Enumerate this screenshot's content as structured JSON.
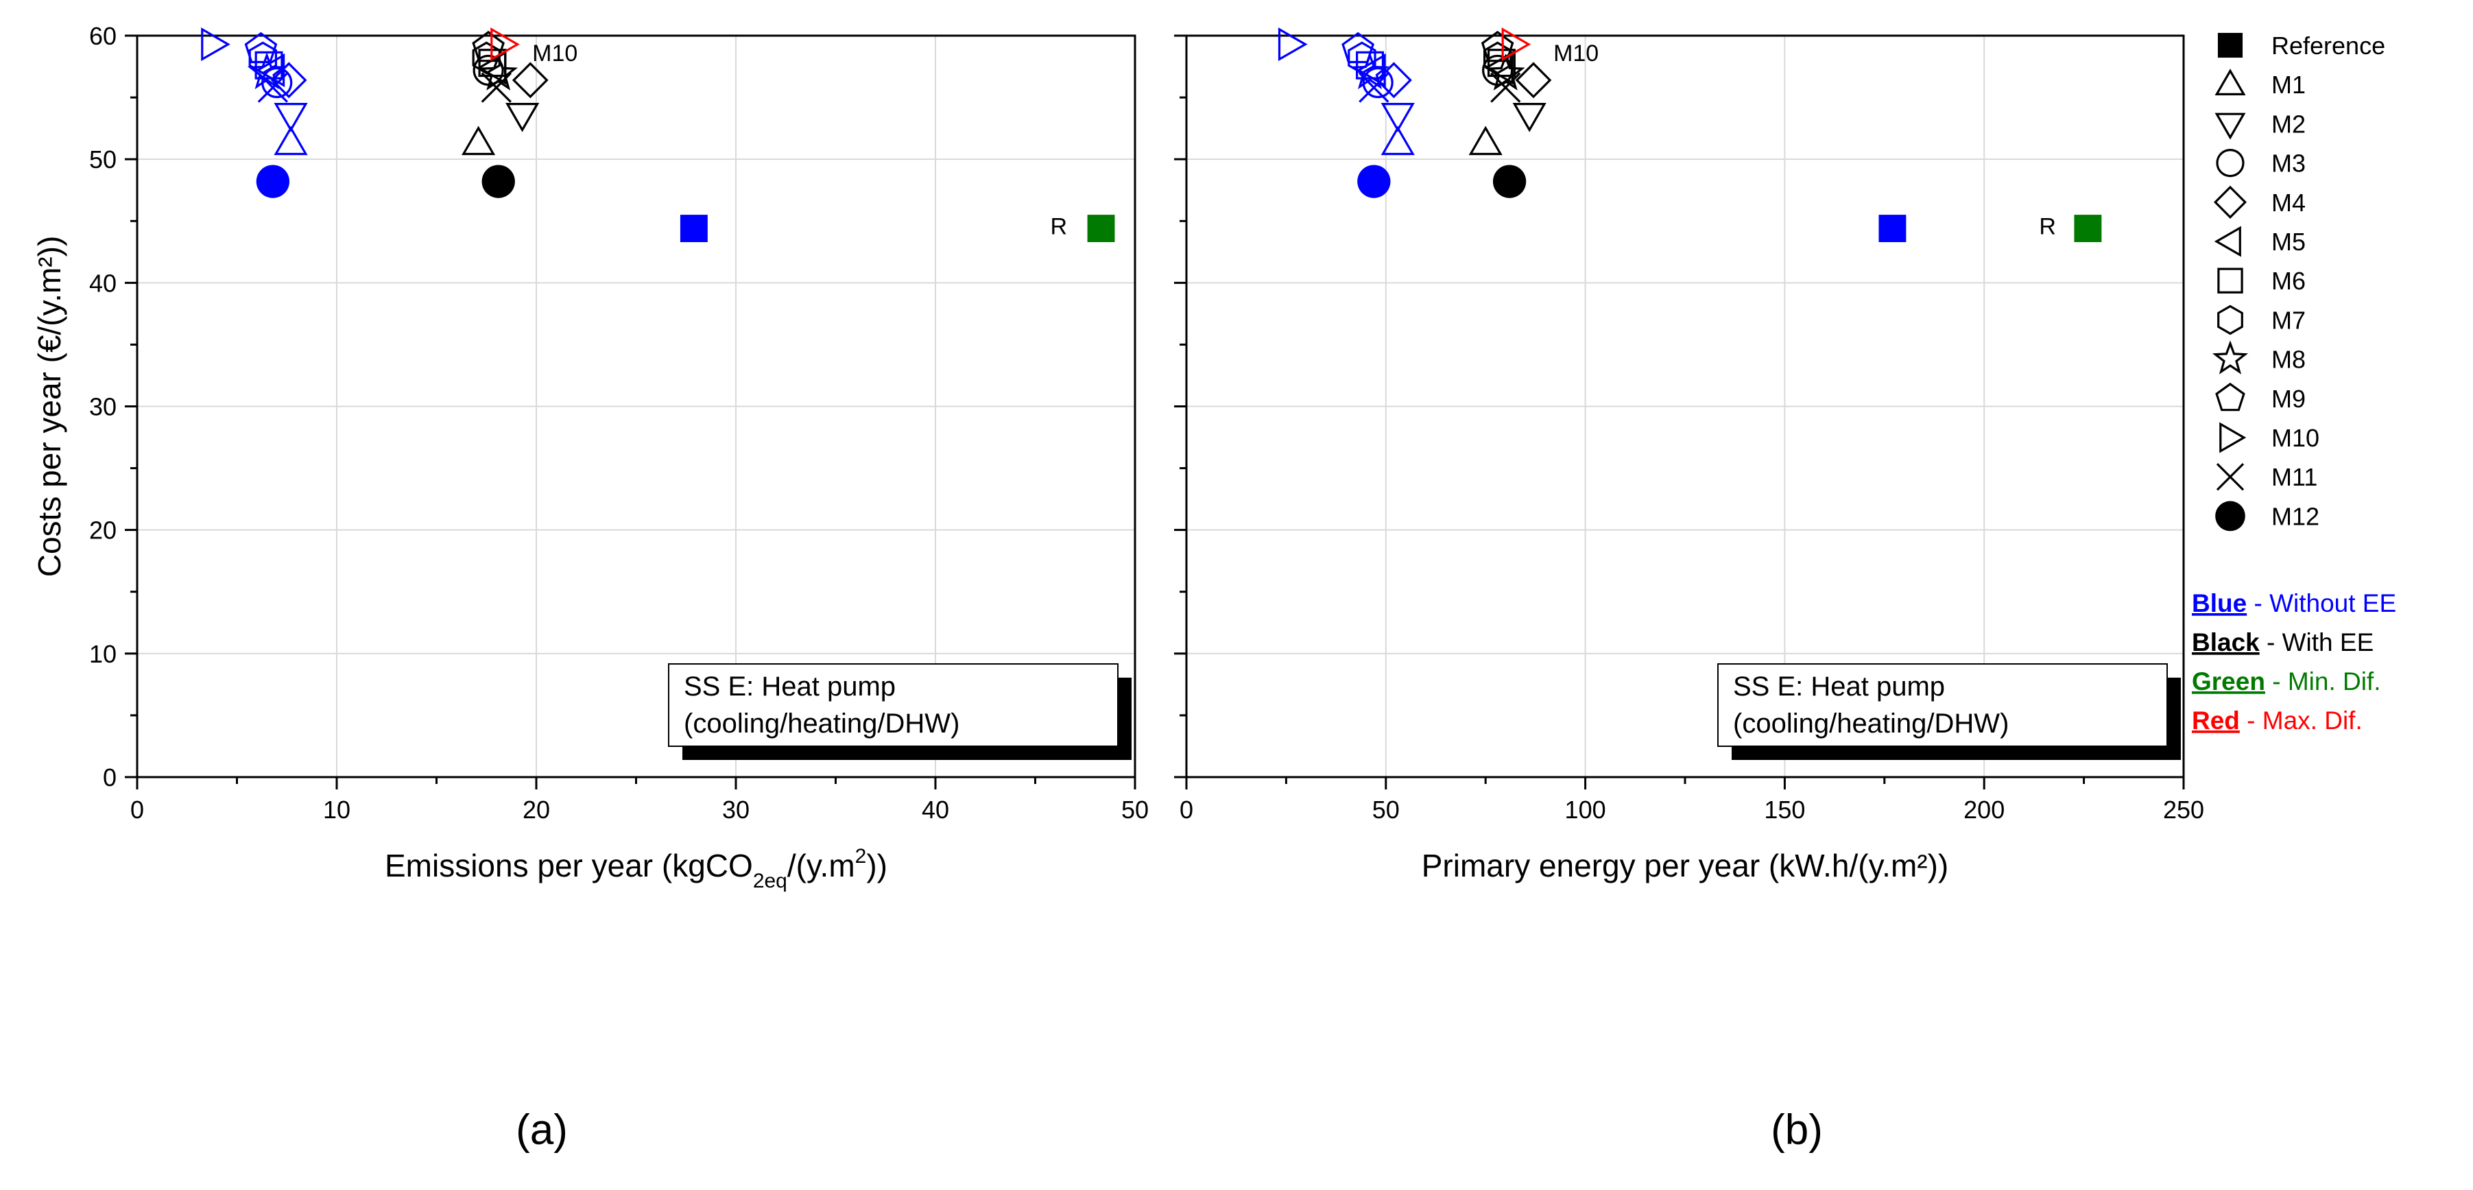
{
  "colors": {
    "blue": "#0000ff",
    "black": "#000000",
    "green": "#007a00",
    "red": "#ff0000",
    "grid": "#d9d9d9"
  },
  "legend": {
    "items": [
      {
        "marker": "filled-square",
        "label": "Reference"
      },
      {
        "marker": "triangle-up",
        "label": "M1"
      },
      {
        "marker": "triangle-down",
        "label": "M2"
      },
      {
        "marker": "circle",
        "label": "M3"
      },
      {
        "marker": "diamond",
        "label": "M4"
      },
      {
        "marker": "triangle-left",
        "label": "M5"
      },
      {
        "marker": "square",
        "label": "M6"
      },
      {
        "marker": "hexagon",
        "label": "M7"
      },
      {
        "marker": "star",
        "label": "M8"
      },
      {
        "marker": "pentagon",
        "label": "M9"
      },
      {
        "marker": "triangle-right",
        "label": "M10"
      },
      {
        "marker": "cross",
        "label": "M11"
      },
      {
        "marker": "filled-circle",
        "label": "M12"
      }
    ],
    "color_key": [
      {
        "word": "Blue",
        "text": " - Without EE",
        "color": "#0000ff"
      },
      {
        "word": "Black",
        "text": " - With EE",
        "color": "#000000"
      },
      {
        "word": "Green",
        "text": " - Min. Dif.",
        "color": "#007a00"
      },
      {
        "word": "Red",
        "text": " - Max. Dif.",
        "color": "#ff0000"
      }
    ]
  },
  "chart_data": [
    {
      "type": "scatter",
      "panel_label": "(a)",
      "ylabel": "Costs per year (€/(y.m²))",
      "xlabel_parts": [
        "Emissions per year (kgCO",
        "2eq",
        "/(y.m",
        "2",
        "))"
      ],
      "xlim": [
        0,
        50
      ],
      "ylim": [
        0,
        60
      ],
      "xticks": [
        0,
        10,
        20,
        30,
        40,
        50
      ],
      "yticks": [
        0,
        10,
        20,
        30,
        40,
        50,
        60
      ],
      "grid": true,
      "annotation_box": {
        "line1": "SS E: Heat pump",
        "line2": "(cooling/heating/DHW)"
      },
      "point_labels": [
        {
          "text": "M10",
          "x": 19.8,
          "y": 58.6
        },
        {
          "text": "R",
          "x": 46.6,
          "y": 44.6
        }
      ],
      "series": [
        {
          "name": "Without EE",
          "color": "blue",
          "points": [
            {
              "m": "filled-square",
              "x": 27.9,
              "y": 44.4
            },
            {
              "m": "triangle-up",
              "x": 7.7,
              "y": 51.3
            },
            {
              "m": "triangle-down",
              "x": 7.7,
              "y": 53.6
            },
            {
              "m": "circle",
              "x": 7.0,
              "y": 56.2
            },
            {
              "m": "diamond",
              "x": 7.6,
              "y": 56.4
            },
            {
              "m": "triangle-left",
              "x": 6.8,
              "y": 57.2
            },
            {
              "m": "square",
              "x": 6.6,
              "y": 57.6
            },
            {
              "m": "hexagon",
              "x": 6.3,
              "y": 58.2
            },
            {
              "m": "star",
              "x": 6.5,
              "y": 57.0
            },
            {
              "m": "pentagon",
              "x": 6.2,
              "y": 58.9
            },
            {
              "m": "triangle-right",
              "x": 3.8,
              "y": 59.3
            },
            {
              "m": "cross",
              "x": 6.8,
              "y": 55.8
            },
            {
              "m": "filled-circle",
              "x": 6.8,
              "y": 48.2
            }
          ]
        },
        {
          "name": "With EE",
          "color": "black",
          "points": [
            {
              "m": "triangle-up",
              "x": 17.1,
              "y": 51.3
            },
            {
              "m": "triangle-down",
              "x": 19.3,
              "y": 53.6
            },
            {
              "m": "circle",
              "x": 17.6,
              "y": 57.2
            },
            {
              "m": "diamond",
              "x": 19.7,
              "y": 56.4
            },
            {
              "m": "triangle-left",
              "x": 17.9,
              "y": 57.4
            },
            {
              "m": "square",
              "x": 17.8,
              "y": 57.8
            },
            {
              "m": "hexagon",
              "x": 17.5,
              "y": 58.2
            },
            {
              "m": "star",
              "x": 18.1,
              "y": 56.9
            },
            {
              "m": "pentagon",
              "x": 17.6,
              "y": 59.0
            },
            {
              "m": "cross",
              "x": 18.0,
              "y": 55.8
            },
            {
              "m": "filled-circle",
              "x": 18.1,
              "y": 48.2
            }
          ]
        },
        {
          "name": "Min. Dif.",
          "color": "green",
          "points": [
            {
              "m": "filled-square",
              "x": 48.3,
              "y": 44.4
            }
          ]
        },
        {
          "name": "Max. Dif.",
          "color": "red",
          "points": [
            {
              "m": "triangle-right",
              "x": 18.3,
              "y": 59.3
            }
          ]
        }
      ]
    },
    {
      "type": "scatter",
      "panel_label": "(b)",
      "xlabel": "Primary energy per year (kW.h/(y.m²))",
      "xlim": [
        0,
        250
      ],
      "ylim": [
        0,
        60
      ],
      "xticks": [
        0,
        50,
        100,
        150,
        200,
        250
      ],
      "yticks": [
        0,
        10,
        20,
        30,
        40,
        50,
        60
      ],
      "grid": true,
      "annotation_box": {
        "line1": "SS E: Heat pump",
        "line2": "(cooling/heating/DHW)"
      },
      "point_labels": [
        {
          "text": "M10",
          "x": 92,
          "y": 58.6
        },
        {
          "text": "R",
          "x": 218,
          "y": 44.6
        }
      ],
      "series": [
        {
          "name": "Without EE",
          "color": "blue",
          "points": [
            {
              "m": "filled-square",
              "x": 177,
              "y": 44.4
            },
            {
              "m": "triangle-up",
              "x": 53,
              "y": 51.3
            },
            {
              "m": "triangle-down",
              "x": 53,
              "y": 53.6
            },
            {
              "m": "circle",
              "x": 48,
              "y": 56.2
            },
            {
              "m": "diamond",
              "x": 52,
              "y": 56.4
            },
            {
              "m": "triangle-left",
              "x": 47,
              "y": 57.2
            },
            {
              "m": "square",
              "x": 46,
              "y": 57.6
            },
            {
              "m": "hexagon",
              "x": 44,
              "y": 58.2
            },
            {
              "m": "star",
              "x": 46,
              "y": 57.0
            },
            {
              "m": "pentagon",
              "x": 43,
              "y": 58.9
            },
            {
              "m": "triangle-right",
              "x": 26,
              "y": 59.3
            },
            {
              "m": "cross",
              "x": 47,
              "y": 55.8
            },
            {
              "m": "filled-circle",
              "x": 47,
              "y": 48.2
            }
          ]
        },
        {
          "name": "With EE",
          "color": "black",
          "points": [
            {
              "m": "triangle-up",
              "x": 75,
              "y": 51.3
            },
            {
              "m": "triangle-down",
              "x": 86,
              "y": 53.6
            },
            {
              "m": "circle",
              "x": 78,
              "y": 57.2
            },
            {
              "m": "diamond",
              "x": 87,
              "y": 56.4
            },
            {
              "m": "triangle-left",
              "x": 79,
              "y": 57.4
            },
            {
              "m": "square",
              "x": 79,
              "y": 57.8
            },
            {
              "m": "hexagon",
              "x": 78,
              "y": 58.2
            },
            {
              "m": "star",
              "x": 80,
              "y": 56.9
            },
            {
              "m": "pentagon",
              "x": 78,
              "y": 59.0
            },
            {
              "m": "cross",
              "x": 80,
              "y": 55.8
            },
            {
              "m": "filled-circle",
              "x": 81,
              "y": 48.2
            }
          ]
        },
        {
          "name": "Min. Dif.",
          "color": "green",
          "points": [
            {
              "m": "filled-square",
              "x": 226,
              "y": 44.4
            }
          ]
        },
        {
          "name": "Max. Dif.",
          "color": "red",
          "points": [
            {
              "m": "triangle-right",
              "x": 82,
              "y": 59.3
            }
          ]
        }
      ]
    }
  ]
}
